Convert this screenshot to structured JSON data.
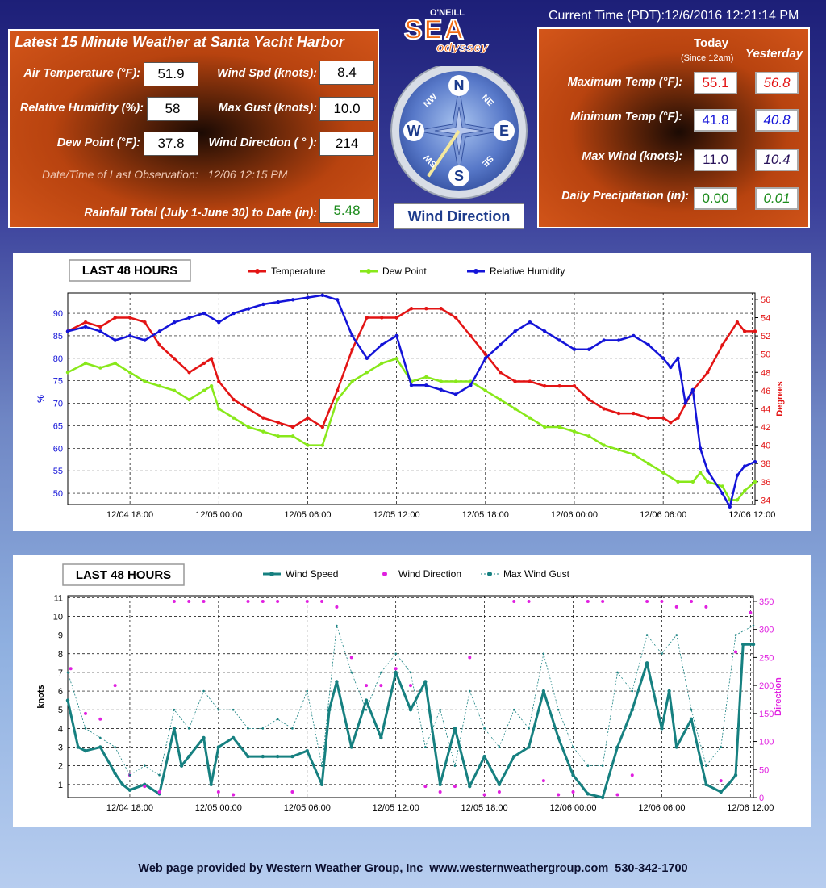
{
  "latest": {
    "title": "Latest 15 Minute Weather at Santa Yacht Harbor",
    "air_temp_label": "Air Temperature (°F):",
    "air_temp": "51.9",
    "rh_label": "Relative Humidity (%):",
    "rh": "58",
    "dew_label": "Dew Point (°F):",
    "dew": "37.8",
    "wind_spd_label": "Wind Spd (knots):",
    "wind_spd": "8.4",
    "max_gust_label": "Max Gust (knots):",
    "max_gust": "10.0",
    "wind_dir_label": "Wind Direction ( ° ):",
    "wind_dir": "214",
    "obs_label": "Date/Time of Last Observation:",
    "obs_time": "12/06 12:15 PM",
    "rain_label": "Rainfall Total (July 1-June 30) to Date (in):",
    "rain": "5.48"
  },
  "logo": {
    "top": "O'NEILL",
    "middle": "SEA",
    "bottom": "odyssey"
  },
  "compass": {
    "n": "N",
    "s": "S",
    "e": "E",
    "w": "W",
    "ne": "NE",
    "nw": "NW",
    "se": "SE",
    "sw": "SW",
    "label": "Wind Direction",
    "direction_deg": 214
  },
  "current_time": "Current Time (PDT):12/6/2016 12:21:14 PM",
  "daily": {
    "today_label": "Today",
    "today_sub": "(Since 12am)",
    "yesterday_label": "Yesterday",
    "max_temp_label": "Maximum Temp (°F):",
    "max_temp_today": "55.1",
    "max_temp_yest": "56.8",
    "min_temp_label": "Minimum Temp (°F):",
    "min_temp_today": "41.8",
    "min_temp_yest": "40.8",
    "max_wind_label": "Max Wind (knots):",
    "max_wind_today": "11.0",
    "max_wind_yest": "10.4",
    "precip_label": "Daily Precipitation (in):",
    "precip_today": "0.00",
    "precip_yest": "0.01"
  },
  "colors": {
    "temp": "#e31414",
    "dew": "#88e81a",
    "rh": "#1414d8",
    "wind": "#168080",
    "dir": "#e020e0",
    "gust": "#168080"
  },
  "footer": "Web page provided by Western Weather Group, Inc  www.westernweathergroup.com  530-342-1700",
  "chart_data": [
    {
      "type": "line",
      "title": "LAST 48 HOURS",
      "legend": [
        "Temperature",
        "Dew Point",
        "Relative Humidity"
      ],
      "x_ticks": [
        "12/04 18:00",
        "12/05 00:00",
        "12/05 06:00",
        "12/05 12:00",
        "12/05 18:00",
        "12/06 00:00",
        "12/06 06:00",
        "12/06 12:00"
      ],
      "x_hours": [
        -18,
        -12,
        -6,
        0,
        6,
        12,
        18,
        24
      ],
      "x_range_hours": [
        -22.2,
        24.2
      ],
      "y_left_label": "%",
      "y_left_ticks": [
        50,
        55,
        60,
        65,
        70,
        75,
        80,
        85,
        90
      ],
      "y_left_range": [
        47.5,
        94.5
      ],
      "y_right_label": "Degrees",
      "y_right_ticks": [
        34,
        36,
        38,
        40,
        42,
        44,
        46,
        48,
        50,
        52,
        54,
        56
      ],
      "y_right_range": [
        33.5,
        56.7
      ],
      "grid": true,
      "series": [
        {
          "name": "Temperature",
          "axis": "right",
          "x": [
            -22.2,
            -21,
            -20,
            -19,
            -18,
            -17,
            -16,
            -15,
            -14,
            -13,
            -12.5,
            -12,
            -11,
            -10,
            -9,
            -8,
            -7,
            -6,
            -5,
            -4,
            -3,
            -2,
            -1,
            0,
            1,
            2,
            3,
            4,
            5,
            6,
            7,
            8,
            9,
            10,
            11,
            12,
            13,
            14,
            15,
            16,
            17,
            18,
            18.5,
            19,
            20,
            21,
            22,
            23,
            23.5,
            24.2
          ],
          "y": [
            52.5,
            53.5,
            53,
            54,
            54,
            53.5,
            51,
            49.5,
            48,
            49,
            49.5,
            47,
            45,
            44,
            43,
            42.5,
            42,
            43,
            42,
            46,
            50.5,
            54,
            54,
            54,
            55,
            55,
            55,
            54,
            52,
            50,
            48,
            47,
            47,
            46.5,
            46.5,
            46.5,
            45,
            44,
            43.5,
            43.5,
            43,
            43,
            42.5,
            43,
            46,
            48,
            51,
            53.5,
            52.5,
            52.5
          ]
        },
        {
          "name": "Dew Point",
          "axis": "right",
          "x": [
            -22.2,
            -21,
            -20,
            -19,
            -18,
            -17,
            -16,
            -15,
            -14,
            -13,
            -12.5,
            -12,
            -11,
            -10,
            -9,
            -8,
            -7,
            -6,
            -5,
            -4,
            -3,
            -2,
            -1,
            0,
            1,
            2,
            3,
            4,
            5,
            6,
            7,
            8,
            9,
            10,
            11,
            12,
            13,
            14,
            15,
            16,
            17,
            18,
            19,
            20,
            20.5,
            21,
            22,
            22.5,
            23,
            23.5,
            24.2
          ],
          "y": [
            48,
            49,
            48.5,
            49,
            48,
            47,
            46.5,
            46,
            45,
            46,
            46.5,
            44,
            43,
            42,
            41.5,
            41,
            41,
            40,
            40,
            45,
            47,
            48,
            49,
            49.5,
            47,
            47.5,
            47,
            47,
            47,
            46,
            45,
            44,
            43,
            42,
            42,
            41.5,
            41,
            40,
            39.5,
            39,
            38,
            37,
            36,
            36,
            37,
            36,
            35.5,
            34,
            34,
            35,
            36
          ]
        },
        {
          "name": "Relative Humidity",
          "axis": "left",
          "x": [
            -22.2,
            -21,
            -20,
            -19,
            -18,
            -17,
            -16,
            -15,
            -14,
            -13,
            -12,
            -11,
            -10,
            -9,
            -8,
            -7,
            -6,
            -5,
            -4,
            -3,
            -2,
            -1,
            0,
            1,
            2,
            3,
            4,
            5,
            6,
            7,
            8,
            9,
            10,
            11,
            12,
            13,
            14,
            15,
            16,
            17,
            18,
            18.5,
            19,
            19.5,
            20,
            20.5,
            21,
            22,
            22.5,
            23,
            23.5,
            24.2
          ],
          "y": [
            86,
            87,
            86,
            84,
            85,
            84,
            86,
            88,
            89,
            90,
            88,
            90,
            91,
            92,
            92.5,
            93,
            93.5,
            94,
            93,
            85,
            80,
            83,
            85,
            74,
            74,
            73,
            72,
            74,
            80,
            83,
            86,
            88,
            86,
            84,
            82,
            82,
            84,
            84,
            85,
            83,
            80,
            78,
            80,
            70,
            73,
            60,
            55,
            50,
            47,
            54,
            56,
            57
          ]
        }
      ]
    },
    {
      "type": "line",
      "title": "LAST 48 HOURS",
      "legend": [
        "Wind Speed",
        "Wind Direction",
        "Max Wind Gust"
      ],
      "x_ticks": [
        "12/04 18:00",
        "12/05 00:00",
        "12/05 06:00",
        "12/05 12:00",
        "12/05 18:00",
        "12/06 00:00",
        "12/06 06:00",
        "12/06 12:00"
      ],
      "x_hours": [
        -18,
        -12,
        -6,
        0,
        6,
        12,
        18,
        24
      ],
      "x_range_hours": [
        -22.2,
        24.2
      ],
      "y_left_label": "knots",
      "y_left_ticks": [
        1,
        2,
        3,
        4,
        5,
        6,
        7,
        8,
        9,
        10,
        11
      ],
      "y_left_range": [
        0.3,
        11.1
      ],
      "y_right_label": "Direction",
      "y_right_ticks": [
        0,
        50,
        100,
        150,
        200,
        250,
        300,
        350
      ],
      "y_right_range": [
        0,
        360
      ],
      "grid": true,
      "series": [
        {
          "name": "Wind Speed",
          "axis": "left",
          "x": [
            -22.2,
            -21.5,
            -21,
            -20,
            -19,
            -18.5,
            -18,
            -17,
            -16,
            -15,
            -14.5,
            -14,
            -13,
            -12.5,
            -12,
            -11,
            -10,
            -9,
            -8,
            -7,
            -6,
            -5,
            -4.5,
            -4,
            -3,
            -2,
            -1,
            0,
            1,
            2,
            3,
            4,
            5,
            6,
            7,
            8,
            9,
            10,
            11,
            12,
            13,
            14,
            15,
            16,
            17,
            18,
            18.5,
            19,
            20,
            21,
            22,
            22.5,
            23,
            23.5,
            24.2
          ],
          "y": [
            5.5,
            3,
            2.8,
            3,
            1.6,
            1,
            0.7,
            1,
            0.5,
            4,
            2,
            2.5,
            3.5,
            1,
            3,
            3.5,
            2.5,
            2.5,
            2.5,
            2.5,
            2.8,
            1,
            5,
            6.5,
            3,
            5.5,
            3.5,
            7,
            5,
            6.5,
            1,
            4,
            0.9,
            2.5,
            1,
            2.5,
            3,
            6,
            3.5,
            1.5,
            0.5,
            0.3,
            3,
            5,
            7.5,
            4,
            6,
            3,
            4.5,
            1,
            0.6,
            1,
            1.5,
            8.5,
            8.5
          ]
        },
        {
          "name": "Wind Direction",
          "axis": "right",
          "x": [
            -22,
            -21,
            -20,
            -19,
            -18,
            -17,
            -16,
            -15,
            -14,
            -13,
            -12,
            -11,
            -10,
            -9,
            -8,
            -7,
            -6,
            -5,
            -4,
            -3,
            -2,
            -1,
            0,
            1,
            2,
            3,
            4,
            5,
            6,
            7,
            8,
            9,
            10,
            11,
            12,
            13,
            14,
            15,
            16,
            17,
            18,
            19,
            20,
            21,
            22,
            23,
            24
          ],
          "y": [
            230,
            150,
            140,
            200,
            40,
            20,
            10,
            350,
            350,
            350,
            10,
            5,
            350,
            350,
            350,
            10,
            350,
            350,
            340,
            250,
            200,
            200,
            230,
            200,
            20,
            10,
            20,
            250,
            5,
            10,
            350,
            350,
            30,
            5,
            10,
            350,
            350,
            5,
            40,
            350,
            350,
            340,
            350,
            340,
            30,
            260,
            330
          ]
        },
        {
          "name": "Max Wind Gust",
          "axis": "left",
          "x": [
            -22.2,
            -21,
            -20,
            -19,
            -18,
            -17,
            -16,
            -15,
            -14,
            -13,
            -12,
            -11,
            -10,
            -9,
            -8,
            -7,
            -6,
            -5,
            -4,
            -3,
            -2,
            -1,
            0,
            1,
            2,
            3,
            4,
            5,
            6,
            7,
            8,
            9,
            10,
            11,
            12,
            13,
            14,
            15,
            16,
            17,
            18,
            19,
            20,
            21,
            22,
            23,
            24.2
          ],
          "y": [
            7,
            4,
            3.5,
            3,
            1.5,
            2,
            1.5,
            5,
            4,
            6,
            5,
            5,
            4,
            4,
            4.5,
            4,
            6,
            2,
            9.5,
            7,
            5,
            7,
            8,
            7,
            3,
            5,
            2,
            6,
            4,
            3,
            5,
            4,
            8,
            5,
            3,
            2,
            2,
            7,
            6,
            9,
            8,
            9,
            5,
            2,
            3,
            9,
            9.5
          ]
        }
      ]
    }
  ]
}
